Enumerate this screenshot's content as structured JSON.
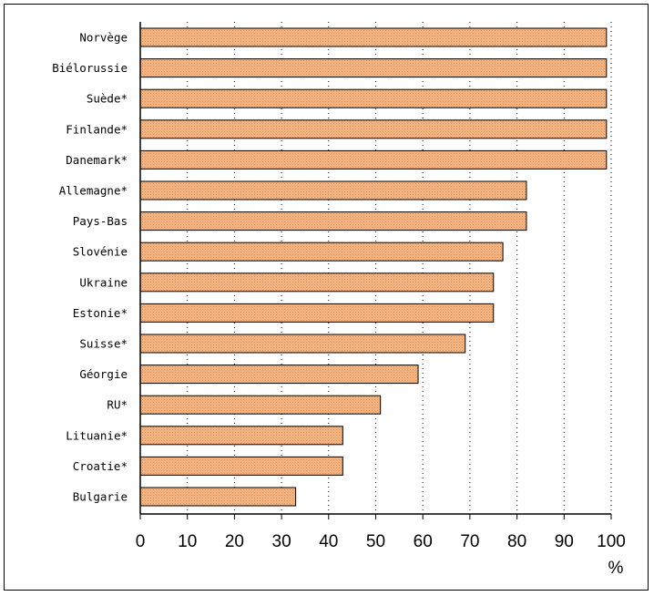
{
  "chart_data": {
    "type": "bar",
    "orientation": "horizontal",
    "categories": [
      "Norvège",
      "Biélorussie",
      "Suède*",
      "Finlande*",
      "Danemark*",
      "Allemagne*",
      "Pays-Bas",
      "Slovénie",
      "Ukraine",
      "Estonie*",
      "Suisse*",
      "Géorgie",
      "RU*",
      "Lituanie*",
      "Croatie*",
      "Bulgarie"
    ],
    "values": [
      99,
      99,
      99,
      99,
      99,
      82,
      82,
      77,
      75,
      75,
      69,
      59,
      51,
      43,
      43,
      33
    ],
    "xlim": [
      0,
      100
    ],
    "xticks": [
      "0",
      "10",
      "20",
      "30",
      "40",
      "50",
      "60",
      "70",
      "80",
      "90",
      "100"
    ],
    "xunit": "%",
    "grid": "vertical-dotted",
    "bar_color": "#f2b27e",
    "bar_edge_color": "#000000"
  }
}
